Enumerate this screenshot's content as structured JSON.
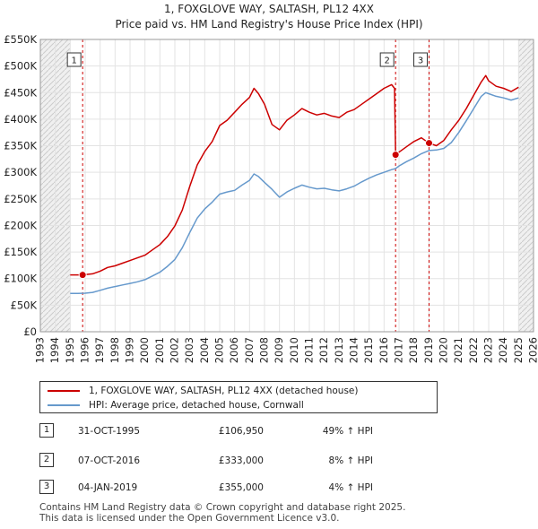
{
  "chart_data": {
    "type": "line",
    "title": "1, FOXGLOVE WAY, SALTASH, PL12 4XX",
    "subtitle": "Price paid vs. HM Land Registry's House Price Index (HPI)",
    "xlabel": "",
    "ylabel": "",
    "xlim": [
      1993,
      2026
    ],
    "ylim": [
      0,
      550000
    ],
    "x_ticks": [
      1993,
      1994,
      1995,
      1996,
      1997,
      1998,
      1999,
      2000,
      2001,
      2002,
      2003,
      2004,
      2005,
      2006,
      2007,
      2008,
      2009,
      2010,
      2011,
      2012,
      2013,
      2014,
      2015,
      2016,
      2017,
      2018,
      2019,
      2020,
      2021,
      2022,
      2023,
      2024,
      2025,
      2026
    ],
    "y_ticks": [
      0,
      50000,
      100000,
      150000,
      200000,
      250000,
      300000,
      350000,
      400000,
      450000,
      500000,
      550000
    ],
    "y_tick_labels": [
      "£0",
      "£50K",
      "£100K",
      "£150K",
      "£200K",
      "£250K",
      "£300K",
      "£350K",
      "£400K",
      "£450K",
      "£500K",
      "£550K"
    ],
    "grid": true,
    "shaded_regions": [
      {
        "from": 1993,
        "to": 1995.0
      },
      {
        "from": 2025.0,
        "to": 2026
      }
    ],
    "series": [
      {
        "name": "1, FOXGLOVE WAY, SALTASH, PL12 4XX (detached house)",
        "color": "#cc0000",
        "points": [
          [
            1995.0,
            107000
          ],
          [
            1995.5,
            107000
          ],
          [
            1995.83,
            106950
          ],
          [
            1996.0,
            107500
          ],
          [
            1996.5,
            109000
          ],
          [
            1997.0,
            114000
          ],
          [
            1997.5,
            121000
          ],
          [
            1998.0,
            124000
          ],
          [
            1998.5,
            129000
          ],
          [
            1999.0,
            134000
          ],
          [
            1999.5,
            139000
          ],
          [
            2000.0,
            144000
          ],
          [
            2000.5,
            154000
          ],
          [
            2001.0,
            164000
          ],
          [
            2001.5,
            179000
          ],
          [
            2002.0,
            199000
          ],
          [
            2002.5,
            229000
          ],
          [
            2003.0,
            274000
          ],
          [
            2003.5,
            314000
          ],
          [
            2004.0,
            339000
          ],
          [
            2004.5,
            358000
          ],
          [
            2005.0,
            388000
          ],
          [
            2005.5,
            398000
          ],
          [
            2006.0,
            413000
          ],
          [
            2006.5,
            428000
          ],
          [
            2007.0,
            441000
          ],
          [
            2007.3,
            458000
          ],
          [
            2007.6,
            448000
          ],
          [
            2008.0,
            428000
          ],
          [
            2008.5,
            390000
          ],
          [
            2009.0,
            380000
          ],
          [
            2009.5,
            398000
          ],
          [
            2010.0,
            408000
          ],
          [
            2010.5,
            420000
          ],
          [
            2011.0,
            413000
          ],
          [
            2011.5,
            408000
          ],
          [
            2012.0,
            411000
          ],
          [
            2012.5,
            406000
          ],
          [
            2013.0,
            403000
          ],
          [
            2013.5,
            413000
          ],
          [
            2014.0,
            418000
          ],
          [
            2014.5,
            428000
          ],
          [
            2015.0,
            438000
          ],
          [
            2015.5,
            448000
          ],
          [
            2016.0,
            458000
          ],
          [
            2016.5,
            465000
          ],
          [
            2016.7,
            458000
          ],
          [
            2016.77,
            333000
          ],
          [
            2017.0,
            338000
          ],
          [
            2017.5,
            348000
          ],
          [
            2018.0,
            358000
          ],
          [
            2018.5,
            365000
          ],
          [
            2019.0,
            355000
          ],
          [
            2019.5,
            350000
          ],
          [
            2020.0,
            360000
          ],
          [
            2020.5,
            380000
          ],
          [
            2021.0,
            398000
          ],
          [
            2021.5,
            420000
          ],
          [
            2022.0,
            445000
          ],
          [
            2022.5,
            470000
          ],
          [
            2022.8,
            482000
          ],
          [
            2023.0,
            472000
          ],
          [
            2023.5,
            462000
          ],
          [
            2024.0,
            458000
          ],
          [
            2024.5,
            452000
          ],
          [
            2025.0,
            460000
          ]
        ]
      },
      {
        "name": "HPI: Average price, detached house, Cornwall",
        "color": "#6699cc",
        "points": [
          [
            1995.0,
            72000
          ],
          [
            1995.5,
            72000
          ],
          [
            1996.0,
            72500
          ],
          [
            1996.5,
            74000
          ],
          [
            1997.0,
            78000
          ],
          [
            1997.5,
            82000
          ],
          [
            1998.0,
            85000
          ],
          [
            1998.5,
            88000
          ],
          [
            1999.0,
            91000
          ],
          [
            1999.5,
            94000
          ],
          [
            2000.0,
            98000
          ],
          [
            2000.5,
            105000
          ],
          [
            2001.0,
            112000
          ],
          [
            2001.5,
            123000
          ],
          [
            2002.0,
            136000
          ],
          [
            2002.5,
            158000
          ],
          [
            2003.0,
            187000
          ],
          [
            2003.5,
            214000
          ],
          [
            2004.0,
            231000
          ],
          [
            2004.5,
            244000
          ],
          [
            2005.0,
            259000
          ],
          [
            2005.5,
            263000
          ],
          [
            2006.0,
            266000
          ],
          [
            2006.5,
            276000
          ],
          [
            2007.0,
            285000
          ],
          [
            2007.3,
            297000
          ],
          [
            2007.6,
            292000
          ],
          [
            2008.0,
            281000
          ],
          [
            2008.5,
            268000
          ],
          [
            2009.0,
            253000
          ],
          [
            2009.5,
            263000
          ],
          [
            2010.0,
            270000
          ],
          [
            2010.5,
            276000
          ],
          [
            2011.0,
            272000
          ],
          [
            2011.5,
            269000
          ],
          [
            2012.0,
            270000
          ],
          [
            2012.5,
            267000
          ],
          [
            2013.0,
            265000
          ],
          [
            2013.5,
            269000
          ],
          [
            2014.0,
            274000
          ],
          [
            2014.5,
            282000
          ],
          [
            2015.0,
            289000
          ],
          [
            2015.5,
            295000
          ],
          [
            2016.0,
            300000
          ],
          [
            2016.5,
            305000
          ],
          [
            2016.77,
            307000
          ],
          [
            2017.0,
            312000
          ],
          [
            2017.5,
            320000
          ],
          [
            2018.0,
            327000
          ],
          [
            2018.5,
            335000
          ],
          [
            2019.0,
            341000
          ],
          [
            2019.5,
            342000
          ],
          [
            2020.0,
            345000
          ],
          [
            2020.5,
            356000
          ],
          [
            2021.0,
            375000
          ],
          [
            2021.5,
            397000
          ],
          [
            2022.0,
            420000
          ],
          [
            2022.5,
            443000
          ],
          [
            2022.8,
            450000
          ],
          [
            2023.0,
            448000
          ],
          [
            2023.5,
            443000
          ],
          [
            2024.0,
            440000
          ],
          [
            2024.5,
            436000
          ],
          [
            2025.0,
            440000
          ]
        ]
      }
    ],
    "sale_markers": [
      {
        "label": "1",
        "x": 1995.83,
        "y": 106950
      },
      {
        "label": "2",
        "x": 2016.77,
        "y": 333000
      },
      {
        "label": "3",
        "x": 2019.01,
        "y": 355000
      }
    ]
  },
  "legend": {
    "property_label": "1, FOXGLOVE WAY, SALTASH, PL12 4XX (detached house)",
    "hpi_label": "HPI: Average price, detached house, Cornwall",
    "property_color": "#cc0000",
    "hpi_color": "#6699cc"
  },
  "sales": [
    {
      "num": "1",
      "date": "31-OCT-1995",
      "price": "£106,950",
      "hpi": "49% ↑ HPI"
    },
    {
      "num": "2",
      "date": "07-OCT-2016",
      "price": "£333,000",
      "hpi": "8% ↑ HPI"
    },
    {
      "num": "3",
      "date": "04-JAN-2019",
      "price": "£355,000",
      "hpi": "4% ↑ HPI"
    }
  ],
  "footer": {
    "line1": "Contains HM Land Registry data © Crown copyright and database right 2025.",
    "line2": "This data is licensed under the Open Government Licence v3.0."
  }
}
